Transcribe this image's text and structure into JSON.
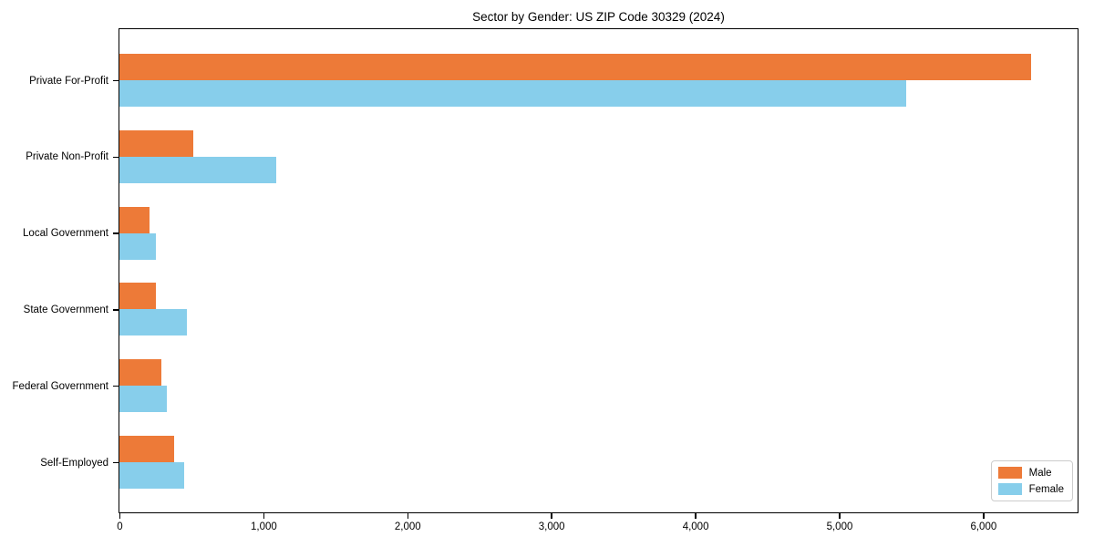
{
  "chart": {
    "title": "Sector by Gender: US ZIP Code 30329 (2024)"
  },
  "chart_data": {
    "type": "bar",
    "orientation": "horizontal",
    "title": "Sector by Gender: US ZIP Code 30329 (2024)",
    "categories": [
      "Private For-Profit",
      "Private Non-Profit",
      "Local Government",
      "State Government",
      "Federal Government",
      "Self-Employed"
    ],
    "series": [
      {
        "name": "Male",
        "color": "#ed7a38",
        "values": [
          6330,
          510,
          210,
          250,
          290,
          380
        ]
      },
      {
        "name": "Female",
        "color": "#87ceeb",
        "values": [
          5460,
          1090,
          250,
          470,
          330,
          450
        ]
      }
    ],
    "xlabel": "",
    "ylabel": "",
    "xlim": [
      0,
      6650
    ],
    "xticks": [
      0,
      1000,
      2000,
      3000,
      4000,
      5000,
      6000
    ],
    "xtick_labels": [
      "0",
      "1,000",
      "2,000",
      "3,000",
      "4,000",
      "5,000",
      "6,000"
    ],
    "grid": false,
    "legend_position": "lower right",
    "spine_color": "#000000",
    "background_color": "#ffffff"
  }
}
